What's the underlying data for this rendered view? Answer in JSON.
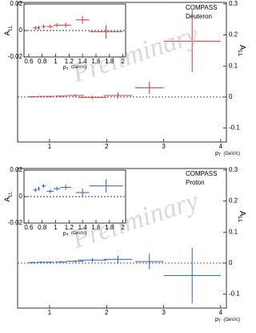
{
  "chart_data": [
    {
      "type": "errorbar",
      "panel": 0,
      "role": "main",
      "color": "#e8322e",
      "annotations": [
        "COMPASS",
        "Deuteron"
      ],
      "watermark": "Preliminary",
      "x_label": "p",
      "x_label_sub": "T",
      "x_label_unit": "(GeV/c)",
      "y_label": "A",
      "y_label_sub": "LL",
      "y_axis_side": "right",
      "x": [
        0.7,
        0.85,
        1.0,
        1.2,
        1.45,
        1.75,
        2.2,
        2.75,
        3.5
      ],
      "xerr": [
        0.07,
        0.07,
        0.07,
        0.1,
        0.15,
        0.25,
        0.25,
        0.25,
        0.5
      ],
      "values": [
        0.001,
        0.002,
        0.002,
        0.003,
        0.005,
        -0.001,
        0.005,
        0.03,
        0.18
      ],
      "yerr": [
        0.002,
        0.002,
        0.002,
        0.003,
        0.004,
        0.005,
        0.01,
        0.02,
        0.1
      ],
      "xlim": [
        0.44,
        4.1
      ],
      "xticks": [
        1,
        2,
        3,
        4
      ],
      "ylim": [
        -0.145,
        0.305
      ],
      "yticks": [
        -0.1,
        0,
        0.1,
        0.2,
        0.3
      ]
    },
    {
      "type": "errorbar",
      "panel": 0,
      "role": "inset",
      "color": "#e8322e",
      "x_label": "p",
      "x_label_sub": "T",
      "x_label_unit": "(GeV/c)",
      "y_label": "A",
      "y_label_sub": "LL",
      "y_axis_side": "left",
      "x": [
        0.7,
        0.75,
        0.82,
        0.92,
        1.02,
        1.15,
        1.4,
        1.75
      ],
      "xerr": [
        0.03,
        0.02,
        0.03,
        0.05,
        0.05,
        0.08,
        0.1,
        0.25
      ],
      "values": [
        0.002,
        0.002,
        0.003,
        0.003,
        0.004,
        0.004,
        0.008,
        -0.001
      ],
      "yerr": [
        0.0015,
        0.0015,
        0.0015,
        0.0015,
        0.0015,
        0.002,
        0.003,
        0.005
      ],
      "xlim": [
        0.53,
        2.04
      ],
      "xticks": [
        0.6,
        0.8,
        1,
        1.2,
        1.4,
        1.6,
        1.8,
        2
      ],
      "ylim": [
        -0.02,
        0.02
      ],
      "yticks": [
        -0.02,
        0,
        0.02
      ]
    },
    {
      "type": "errorbar",
      "panel": 1,
      "role": "main",
      "color": "#2a5ccf",
      "annotations": [
        "COMPASS",
        "Proton"
      ],
      "watermark": "Preliminary",
      "x_label": "p",
      "x_label_sub": "T",
      "x_label_unit": "(GeV/c)",
      "y_label": "A",
      "y_label_sub": "LL",
      "y_axis_side": "right",
      "x": [
        0.7,
        0.85,
        1.0,
        1.2,
        1.45,
        1.75,
        2.2,
        2.75,
        3.5
      ],
      "xerr": [
        0.07,
        0.07,
        0.07,
        0.1,
        0.15,
        0.25,
        0.25,
        0.25,
        0.5
      ],
      "values": [
        0.002,
        0.003,
        0.003,
        0.004,
        0.006,
        0.01,
        0.012,
        0.005,
        -0.04
      ],
      "yerr": [
        0.002,
        0.002,
        0.002,
        0.003,
        0.004,
        0.006,
        0.012,
        0.025,
        0.09
      ],
      "xlim": [
        0.44,
        4.1
      ],
      "xticks": [
        1,
        2,
        3,
        4
      ],
      "ylim": [
        -0.145,
        0.305
      ],
      "yticks": [
        -0.1,
        0,
        0.1,
        0.2,
        0.3
      ]
    },
    {
      "type": "errorbar",
      "panel": 1,
      "role": "inset",
      "color": "#2a5ccf",
      "x_label": "p",
      "x_label_sub": "T",
      "x_label_unit": "(GeV/c)",
      "y_label": "A",
      "y_label_sub": "LL",
      "y_axis_side": "left",
      "x": [
        0.7,
        0.75,
        0.82,
        0.92,
        1.02,
        1.15,
        1.4,
        1.75
      ],
      "xerr": [
        0.03,
        0.02,
        0.03,
        0.05,
        0.05,
        0.08,
        0.1,
        0.25
      ],
      "values": [
        0.005,
        0.006,
        0.008,
        0.004,
        0.006,
        0.007,
        0.003,
        0.008
      ],
      "yerr": [
        0.0015,
        0.0015,
        0.0015,
        0.0015,
        0.0015,
        0.002,
        0.003,
        0.005
      ],
      "xlim": [
        0.53,
        2.04
      ],
      "xticks": [
        0.6,
        0.8,
        1,
        1.2,
        1.4,
        1.6,
        1.8,
        2
      ],
      "ylim": [
        -0.02,
        0.02
      ],
      "yticks": [
        -0.02,
        0,
        0.02
      ]
    }
  ]
}
